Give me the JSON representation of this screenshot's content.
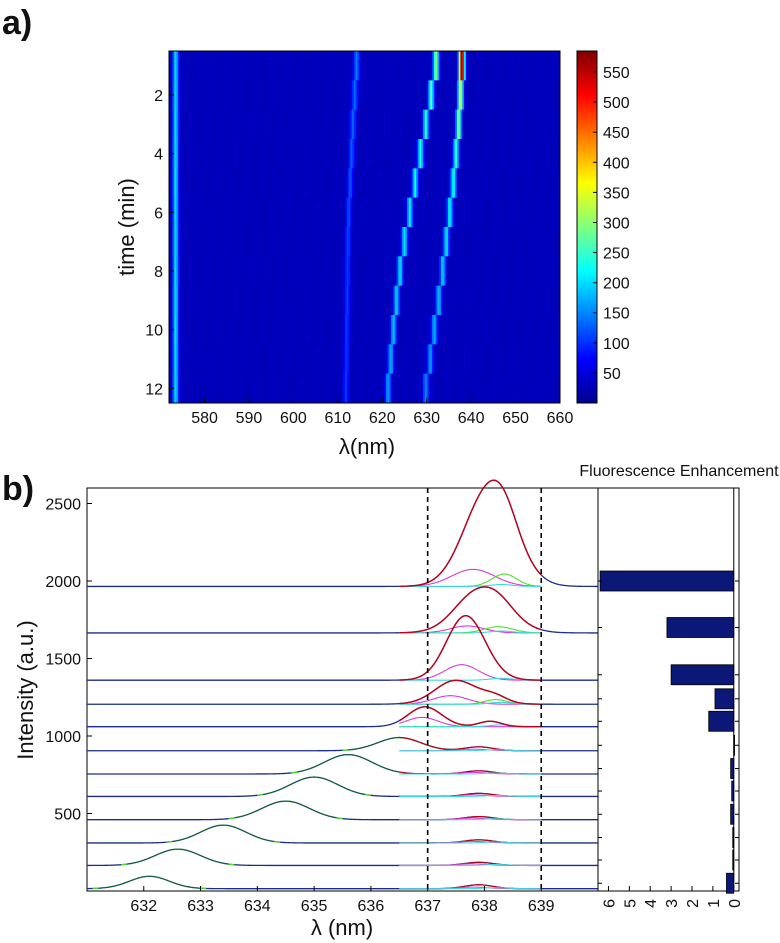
{
  "panel_labels": [
    "a)",
    "b)"
  ],
  "chart_data": [
    {
      "type": "heatmap",
      "panel": "a)",
      "xlabel": "λ(nm)",
      "ylabel": "time (min)",
      "xlim": [
        572,
        660
      ],
      "ylim": [
        0.5,
        12.5
      ],
      "x_ticks": [
        580,
        590,
        600,
        610,
        620,
        630,
        640,
        650,
        660
      ],
      "y_ticks": [
        2,
        4,
        6,
        8,
        10,
        12
      ],
      "colorbar": {
        "min": 0,
        "max": 585,
        "ticks": [
          50,
          100,
          150,
          200,
          250,
          300,
          350,
          400,
          450,
          500,
          550
        ]
      },
      "background_value": 30,
      "time": [
        1,
        2,
        3,
        4,
        5,
        6,
        7,
        8,
        9,
        10,
        11,
        12
      ],
      "ridges": [
        {
          "name": "ridge-573",
          "center": [
            573.5,
            573.5,
            573.5,
            573.5,
            573.5,
            573.5,
            573.5,
            573.5,
            573.5,
            573.5,
            573.5,
            573.5
          ],
          "peak": [
            170,
            170,
            170,
            170,
            170,
            170,
            170,
            170,
            170,
            170,
            170,
            170
          ]
        },
        {
          "name": "ridge-shift-short",
          "center": [
            632.1,
            631.0,
            629.8,
            628.6,
            627.4,
            626.2,
            625.0,
            624.0,
            623.2,
            622.5,
            621.9,
            621.3
          ],
          "peak": [
            260,
            230,
            210,
            200,
            190,
            180,
            170,
            170,
            160,
            150,
            140,
            130
          ]
        },
        {
          "name": "ridge-shift-long",
          "center": [
            637.9,
            637.6,
            637.2,
            636.6,
            636.0,
            635.2,
            634.4,
            633.6,
            632.7,
            631.7,
            630.8,
            629.8
          ],
          "peak": [
            585,
            300,
            260,
            210,
            190,
            180,
            170,
            160,
            150,
            140,
            130,
            120
          ]
        },
        {
          "name": "ridge-614",
          "center": [
            614.2,
            613.8,
            613.4,
            613.1,
            612.8,
            612.5,
            612.3,
            612.2,
            612.1,
            612.0,
            611.9,
            611.8
          ],
          "peak": [
            110,
            100,
            95,
            90,
            85,
            80,
            80,
            75,
            75,
            70,
            70,
            70
          ]
        }
      ]
    },
    {
      "type": "line",
      "panel": "b)",
      "xlabel": "λ (nm)",
      "ylabel": "Intensity (a.u.)",
      "xlim": [
        631,
        640
      ],
      "ylim": [
        0,
        2600
      ],
      "x_ticks": [
        632,
        633,
        634,
        635,
        636,
        637,
        638,
        639
      ],
      "y_ticks": [
        500,
        1000,
        1500,
        2000,
        2500
      ],
      "vlines": [
        637,
        639
      ],
      "colors": {
        "data": "#1c2c8c",
        "fit_total": "#c0001a",
        "fit_peak1": "#d63cd6",
        "fit_peak2": "#52dd2c",
        "fit_peak3": "#3cd8dc",
        "fit_low": "#4cdc2c"
      },
      "spectra": [
        {
          "baseline": 1965,
          "main_peak": {
            "center": 638.15,
            "height": 560,
            "width": 0.42
          },
          "components": [
            {
              "center": 637.8,
              "height": 110,
              "width": 0.38
            },
            {
              "center": 638.35,
              "height": 80,
              "width": 0.22
            }
          ]
        },
        {
          "baseline": 1665,
          "main_peak": {
            "center": 638.0,
            "height": 245,
            "width": 0.45
          },
          "components": [
            {
              "center": 637.7,
              "height": 45,
              "width": 0.3
            },
            {
              "center": 638.25,
              "height": 40,
              "width": 0.25
            }
          ]
        },
        {
          "baseline": 1360,
          "main_peak": {
            "center": 637.7,
            "height": 320,
            "width": 0.35
          },
          "components": [
            {
              "center": 637.6,
              "height": 100,
              "width": 0.3
            }
          ]
        },
        {
          "baseline": 1205,
          "main_peak": {
            "center": 637.6,
            "height": 105,
            "width": 0.42
          },
          "components": [
            {
              "center": 637.4,
              "height": 55,
              "width": 0.3
            },
            {
              "center": 638.2,
              "height": 30,
              "width": 0.2
            }
          ]
        },
        {
          "baseline": 1060,
          "main_peak": {
            "center": 637.0,
            "height": 70,
            "width": 0.3
          },
          "components": [
            {
              "center": 636.9,
              "height": 60,
              "width": 0.28
            },
            {
              "center": 638.1,
              "height": 35,
              "width": 0.2
            }
          ]
        },
        {
          "baseline": 905,
          "main_peak": {
            "center": 636.5,
            "height": 85,
            "width": 0.38
          },
          "components": [
            {
              "center": 637.9,
              "height": 25,
              "width": 0.25
            }
          ]
        },
        {
          "baseline": 755,
          "main_peak": {
            "center": 635.6,
            "height": 125,
            "width": 0.42
          },
          "components": [
            {
              "center": 637.9,
              "height": 20,
              "width": 0.25
            }
          ]
        },
        {
          "baseline": 610,
          "main_peak": {
            "center": 635.0,
            "height": 125,
            "width": 0.42
          },
          "components": [
            {
              "center": 637.9,
              "height": 20,
              "width": 0.25
            }
          ]
        },
        {
          "baseline": 460,
          "main_peak": {
            "center": 634.5,
            "height": 120,
            "width": 0.42
          },
          "components": [
            {
              "center": 637.9,
              "height": 20,
              "width": 0.25
            }
          ]
        },
        {
          "baseline": 310,
          "main_peak": {
            "center": 633.4,
            "height": 115,
            "width": 0.4
          },
          "components": [
            {
              "center": 637.9,
              "height": 20,
              "width": 0.25
            }
          ]
        },
        {
          "baseline": 165,
          "main_peak": {
            "center": 632.6,
            "height": 105,
            "width": 0.4
          },
          "components": [
            {
              "center": 637.9,
              "height": 20,
              "width": 0.25
            }
          ]
        },
        {
          "baseline": 15,
          "main_peak": {
            "center": 632.1,
            "height": 80,
            "width": 0.35
          },
          "components": [
            {
              "center": 637.9,
              "height": 25,
              "width": 0.25
            }
          ]
        }
      ]
    },
    {
      "type": "bar",
      "panel": "b)",
      "orientation": "horizontal",
      "title": "Fluorescence Enhancement",
      "x_ticks": [
        6,
        5,
        4,
        3,
        2,
        1,
        0
      ],
      "x_reversed": true,
      "xlim": [
        -0.25,
        6.5
      ],
      "values": [
        6.4,
        3.2,
        3.0,
        0.9,
        1.2,
        0,
        0.15,
        0.1,
        0.15,
        0.05,
        0.05,
        0.35
      ],
      "bar_color": "#0c1878"
    }
  ]
}
